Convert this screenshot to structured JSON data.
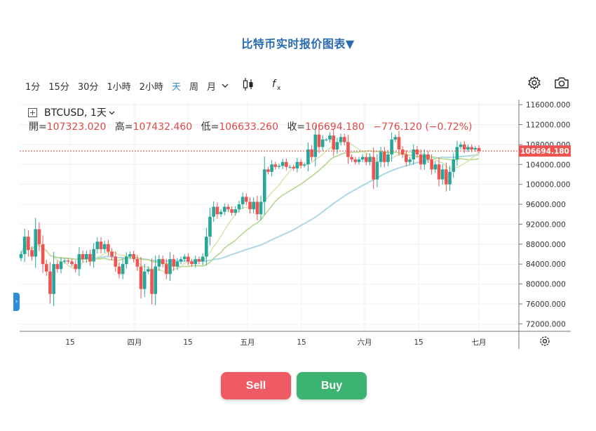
{
  "header": {
    "title": "比特币实时报价图表▼"
  },
  "toolbar": {
    "intervals": [
      "1分",
      "15分",
      "30分",
      "1小時",
      "2小時",
      "天",
      "周",
      "月"
    ],
    "active_interval": "天"
  },
  "legend": {
    "symbol": "BTCUSD, 1天",
    "open_label": "開=",
    "open": "107323.020",
    "high_label": "高=",
    "high": "107432.460",
    "low_label": "低=",
    "low": "106633.260",
    "close_label": "收=",
    "close": "106694.180",
    "change": "−776.120 (−0.72%)"
  },
  "price_tag": "106694.180",
  "colors": {
    "up": "#26a69a",
    "down": "#ef5350",
    "ma_fast": "#d6e2a8",
    "ma_mid": "#b7d68c",
    "ma_slow": "#add8e6"
  },
  "chart_data": {
    "type": "candlestick",
    "yaxis": {
      "ticks": [
        "116000.000",
        "112000.000",
        "108000.000",
        "104000.000",
        "100000.000",
        "96000.000",
        "92000.000",
        "88000.000",
        "84000.000",
        "80000.000",
        "76000.000",
        "72000.000"
      ],
      "range": [
        70500,
        117000
      ]
    },
    "xaxis": {
      "ticks": [
        "15",
        "四月",
        "15",
        "五月",
        "15",
        "六月",
        "15",
        "七月"
      ]
    },
    "last_price": 106694.18,
    "closes": [
      86000,
      89500,
      86800,
      85500,
      91000,
      88000,
      84000,
      82500,
      78000,
      84000,
      83000,
      84500,
      84700,
      84500,
      84000,
      83000,
      86000,
      85000,
      86000,
      84500,
      87000,
      88500,
      87000,
      88000,
      86500,
      85500,
      83500,
      82000,
      84000,
      85500,
      86000,
      85000,
      83500,
      79000,
      82500,
      83000,
      78000,
      83500,
      85000,
      84000,
      82000,
      85000,
      83500,
      84500,
      85000,
      85500,
      84500,
      84000,
      85000,
      84500,
      85500,
      89500,
      93500,
      95500,
      94000,
      94500,
      95500,
      95000,
      94300,
      95000,
      96000,
      97500,
      96500,
      95000,
      96500,
      94000,
      96500,
      103000,
      102500,
      104000,
      103500,
      103700,
      104500,
      103500,
      103500,
      103200,
      104500,
      103800,
      104000,
      107000,
      105500,
      110000,
      107500,
      109000,
      109000,
      109800,
      107000,
      108500,
      109500,
      108500,
      105500,
      105000,
      104500,
      105000,
      105500,
      104500,
      105500,
      101000,
      104500,
      106500,
      104500,
      106000,
      109000,
      109500,
      107000,
      106000,
      104500,
      105000,
      107000,
      106000,
      104000,
      106000,
      105000,
      103000,
      104000,
      101000,
      103000,
      100000,
      102500,
      105000,
      107500,
      108000,
      107000,
      107500,
      107000,
      107300,
      106694
    ]
  },
  "actions": {
    "sell": "Sell",
    "buy": "Buy"
  }
}
